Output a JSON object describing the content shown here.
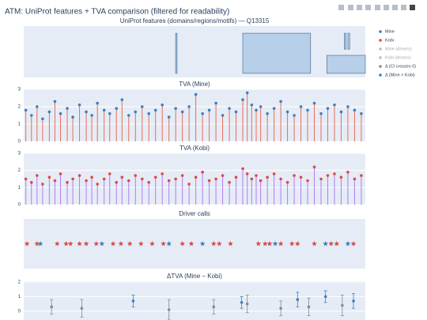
{
  "title": "ATM: UniProt features + TVA comparison (filtered for readability)",
  "chart_data": [
    {
      "type": "features",
      "title": "UniProt features (domains/regions/motifs) — Q13315",
      "xlim": [
        1,
        3056
      ],
      "ylim": [
        0,
        1
      ],
      "fill": "#b7cfe8",
      "stroke": "#5b7fa6",
      "features": [
        {
          "start": 1360,
          "end": 1372,
          "lo": 0.08,
          "hi": 0.86
        },
        {
          "start": 1960,
          "end": 2566,
          "lo": 0.08,
          "hi": 0.86
        },
        {
          "start": 2712,
          "end": 3056,
          "lo": 0.08,
          "hi": 0.43
        },
        {
          "start": 2868,
          "end": 2884,
          "lo": 0.55,
          "hi": 0.86
        },
        {
          "start": 2900,
          "end": 2916,
          "lo": 0.55,
          "hi": 0.86
        }
      ]
    },
    {
      "type": "lollipop",
      "title": "TVA (Mine)",
      "xlim": [
        1,
        3056
      ],
      "ylim": [
        0,
        3
      ],
      "yticks": [
        0,
        1,
        2,
        3
      ],
      "stem_color": "#ef6a55",
      "series": [
        {
          "name": "Mine",
          "color": "#3f7fbf",
          "x": [
            20,
            70,
            120,
            170,
            230,
            280,
            330,
            390,
            440,
            500,
            560,
            610,
            660,
            720,
            770,
            830,
            880,
            940,
            1000,
            1060,
            1120,
            1180,
            1240,
            1300,
            1360,
            1420,
            1480,
            1540,
            1600,
            1660,
            1720,
            1780,
            1840,
            1900,
            1960,
            2000,
            2040,
            2080,
            2120,
            2180,
            2240,
            2300,
            2360,
            2420,
            2480,
            2540,
            2600,
            2660,
            2720,
            2780,
            2840,
            2900,
            2960,
            3020
          ],
          "values": [
            1.8,
            1.5,
            2.0,
            1.3,
            1.7,
            2.3,
            1.6,
            1.9,
            1.4,
            2.1,
            1.7,
            1.5,
            2.2,
            1.8,
            1.6,
            1.9,
            2.4,
            1.5,
            1.7,
            2.0,
            1.6,
            1.8,
            2.1,
            1.4,
            1.9,
            1.7,
            2.0,
            2.7,
            1.6,
            1.8,
            2.2,
            1.5,
            1.9,
            1.7,
            2.4,
            2.8,
            2.1,
            1.8,
            2.0,
            1.6,
            1.9,
            2.3,
            1.7,
            1.5,
            2.0,
            1.8,
            2.2,
            1.6,
            1.9,
            2.1,
            1.7,
            2.0,
            1.8,
            1.6
          ]
        }
      ]
    },
    {
      "type": "lollipop",
      "title": "TVA (Kobi)",
      "xlim": [
        1,
        3056
      ],
      "ylim": [
        0,
        3
      ],
      "yticks": [
        0,
        1,
        2,
        3
      ],
      "stem_color": "#b27cf2",
      "series": [
        {
          "name": "Kobi",
          "color": "#e04848",
          "x": [
            20,
            70,
            120,
            170,
            230,
            280,
            330,
            390,
            440,
            500,
            560,
            610,
            660,
            720,
            770,
            830,
            880,
            940,
            1000,
            1060,
            1120,
            1180,
            1240,
            1300,
            1360,
            1420,
            1480,
            1540,
            1600,
            1660,
            1720,
            1780,
            1840,
            1900,
            1960,
            2000,
            2040,
            2080,
            2120,
            2180,
            2240,
            2300,
            2360,
            2420,
            2480,
            2540,
            2600,
            2660,
            2720,
            2780,
            2840,
            2900,
            2960,
            3020
          ],
          "values": [
            1.5,
            1.3,
            1.7,
            1.2,
            1.6,
            1.4,
            1.8,
            1.3,
            1.5,
            1.7,
            1.4,
            1.6,
            1.2,
            1.5,
            1.8,
            1.3,
            1.6,
            1.4,
            1.7,
            1.5,
            1.3,
            1.6,
            1.8,
            1.4,
            1.5,
            1.7,
            1.2,
            1.6,
            1.9,
            1.4,
            1.5,
            1.7,
            1.3,
            1.6,
            2.1,
            1.8,
            1.5,
            1.7,
            1.4,
            1.6,
            1.8,
            1.5,
            1.3,
            1.7,
            1.6,
            1.4,
            2.2,
            1.5,
            1.7,
            1.8,
            1.6,
            1.9,
            1.5,
            1.7
          ]
        }
      ]
    },
    {
      "type": "stars",
      "title": "Driver calls",
      "xlim": [
        1,
        3056
      ],
      "series": [
        {
          "name": "Mine (drivers)",
          "color": "#3f7fbf",
          "legend_dimmed": true,
          "x": [
            150,
            700,
            1300,
            1600,
            2250,
            2700,
            2900
          ]
        },
        {
          "name": "Kobi (drivers)",
          "color": "#e04848",
          "legend_dimmed": true,
          "x": [
            30,
            120,
            300,
            380,
            420,
            500,
            560,
            650,
            800,
            870,
            950,
            1050,
            1150,
            1250,
            1420,
            1500,
            1700,
            1750,
            1850,
            2100,
            2160,
            2200,
            2300,
            2400,
            2450,
            2600,
            2750,
            2800,
            2950
          ]
        }
      ]
    },
    {
      "type": "errorbar",
      "title": "ΔTVA (Mine − Kobi)",
      "xlim": [
        1,
        3056
      ],
      "ylim": [
        -0.6,
        2.05
      ],
      "yticks": [
        0,
        1,
        2
      ],
      "series": [
        {
          "name": "Δ (CI crosses 0)",
          "color": "#8a8a8a",
          "x": [
            250,
            520,
            1300,
            1700,
            2000,
            2300,
            2550,
            2850
          ],
          "values": [
            0.3,
            0.2,
            0.1,
            0.3,
            0.5,
            0.2,
            0.3,
            0.4
          ],
          "errors": [
            0.5,
            0.6,
            0.7,
            0.5,
            0.6,
            0.5,
            0.6,
            0.7
          ]
        },
        {
          "name": "Δ (Mine > Kobi)",
          "color": "#3f7fbf",
          "x": [
            980,
            1950,
            2450,
            2700,
            2950
          ],
          "values": [
            0.7,
            0.6,
            0.8,
            1.0,
            0.7
          ],
          "errors": [
            0.4,
            0.4,
            0.5,
            0.4,
            0.5
          ]
        }
      ]
    }
  ]
}
